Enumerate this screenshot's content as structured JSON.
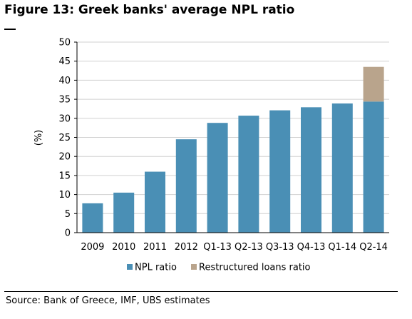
{
  "figure": {
    "title": "Figure 13: Greek banks' average NPL ratio",
    "source": "Source: Bank of Greece, IMF, UBS estimates"
  },
  "chart_data": {
    "type": "bar",
    "stacked": true,
    "title": "Figure 13: Greek banks' average NPL ratio",
    "xlabel": "",
    "ylabel": "(%)",
    "ylim": [
      0,
      50
    ],
    "yticks": [
      0,
      5,
      10,
      15,
      20,
      25,
      30,
      35,
      40,
      45,
      50
    ],
    "grid": true,
    "legend_position": "bottom",
    "categories": [
      "2009",
      "2010",
      "2011",
      "2012",
      "Q1-13",
      "Q2-13",
      "Q3-13",
      "Q4-13",
      "Q1-14",
      "Q2-14"
    ],
    "series": [
      {
        "name": "NPL ratio",
        "color": "#4a8fb5",
        "values": [
          7.7,
          10.5,
          16.0,
          24.5,
          28.8,
          30.7,
          32.1,
          32.9,
          33.9,
          34.4
        ]
      },
      {
        "name": "Restructured loans ratio",
        "color": "#b9a48c",
        "values": [
          0,
          0,
          0,
          0,
          0,
          0,
          0,
          0,
          0,
          9.1
        ]
      }
    ]
  }
}
